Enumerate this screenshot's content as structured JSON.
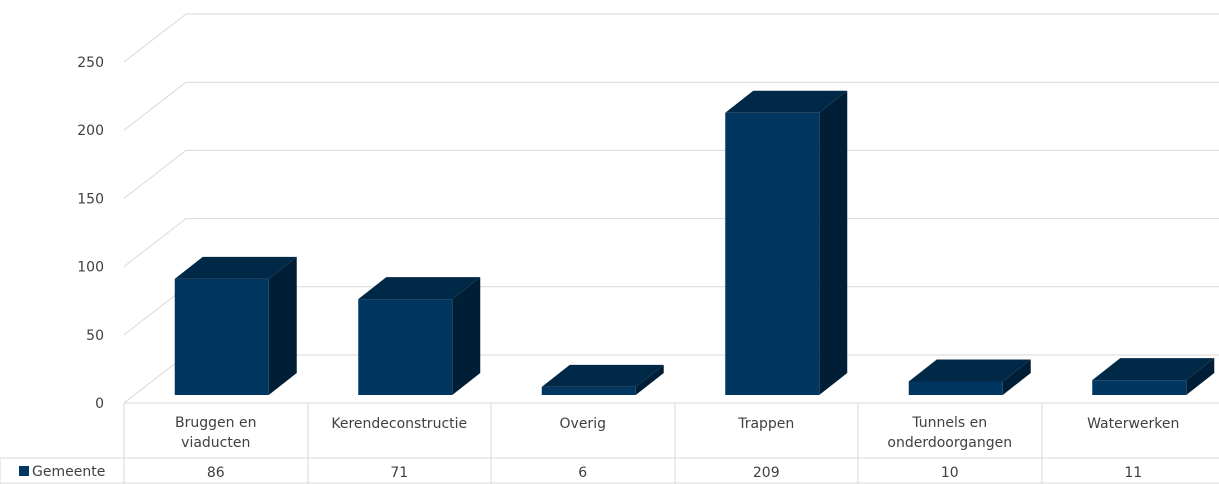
{
  "chart_data": {
    "type": "bar",
    "categories": [
      [
        "Bruggen en",
        "viaducten"
      ],
      [
        "Kerendeconstructie"
      ],
      [
        "Overig"
      ],
      [
        "Trappen"
      ],
      [
        "Tunnels en",
        "onderdoorgangen"
      ],
      [
        "Waterwerken"
      ]
    ],
    "series": [
      {
        "name": "Gemeente",
        "values": [
          86,
          71,
          6,
          209,
          10,
          11
        ],
        "color": "#003660"
      }
    ],
    "ylim": [
      0,
      250
    ],
    "yticks": [
      "0",
      "50",
      "100",
      "150",
      "200",
      "250"
    ],
    "grid": true,
    "legend": "table-left",
    "data_table": true,
    "style": "3d-column"
  }
}
